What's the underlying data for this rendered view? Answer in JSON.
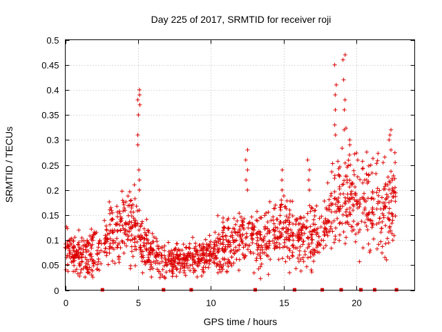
{
  "chart_data": {
    "type": "scatter",
    "title": "Day 225 of 2017, SRMTID for receiver roji",
    "xlabel": "GPS time / hours",
    "ylabel": "SRMTID / TECUs",
    "xlim": [
      0,
      24
    ],
    "ylim": [
      0,
      0.5
    ],
    "xticks": [
      0,
      5,
      10,
      15,
      20
    ],
    "xtick_labels": [
      "0",
      "5",
      "10",
      "15",
      "20"
    ],
    "yticks": [
      0,
      0.05,
      0.1,
      0.15,
      0.2,
      0.25,
      0.3,
      0.35,
      0.4,
      0.45,
      0.5
    ],
    "ytick_labels": [
      "0",
      "0.05",
      "0.1",
      "0.15",
      "0.2",
      "0.25",
      "0.3",
      "0.35",
      "0.4",
      "0.45",
      "0.5"
    ],
    "grid": true,
    "marker": "+",
    "color": "#dd0000",
    "gap_markers_x": [
      2.55,
      6.75,
      8.65,
      13.05,
      15.75,
      17.65,
      18.95,
      20.3,
      21.25,
      22.75
    ],
    "baseline_envelope": [
      [
        0.0,
        0.075
      ],
      [
        1.0,
        0.07
      ],
      [
        2.5,
        0.075
      ],
      [
        3.2,
        0.12
      ],
      [
        4.5,
        0.13
      ],
      [
        5.5,
        0.09
      ],
      [
        6.5,
        0.06
      ],
      [
        8.5,
        0.06
      ],
      [
        9.5,
        0.07
      ],
      [
        11.0,
        0.09
      ],
      [
        12.5,
        0.11
      ],
      [
        13.5,
        0.1
      ],
      [
        15.0,
        0.12
      ],
      [
        16.5,
        0.1
      ],
      [
        17.5,
        0.11
      ],
      [
        18.5,
        0.17
      ],
      [
        19.5,
        0.2
      ],
      [
        20.5,
        0.17
      ],
      [
        22.0,
        0.17
      ],
      [
        22.8,
        0.18
      ]
    ],
    "segments": [
      [
        0.0,
        2.5
      ],
      [
        2.65,
        6.7
      ],
      [
        6.8,
        8.6
      ],
      [
        8.7,
        13.0
      ],
      [
        13.1,
        15.7
      ],
      [
        15.8,
        17.6
      ],
      [
        17.7,
        18.9
      ],
      [
        19.0,
        20.25
      ],
      [
        20.35,
        21.2
      ],
      [
        21.3,
        22.7
      ]
    ],
    "peaks": [
      {
        "x": 5.05,
        "values": [
          0.29,
          0.31,
          0.35,
          0.37,
          0.38,
          0.39,
          0.4,
          0.24,
          0.22,
          0.2
        ]
      },
      {
        "x": 12.45,
        "values": [
          0.2,
          0.22,
          0.24,
          0.26,
          0.28
        ]
      },
      {
        "x": 18.55,
        "values": [
          0.36,
          0.39,
          0.41,
          0.45,
          0.33,
          0.31
        ]
      },
      {
        "x": 19.15,
        "values": [
          0.32,
          0.36,
          0.38,
          0.42,
          0.47,
          0.46
        ]
      },
      {
        "x": 19.5,
        "values": [
          0.25,
          0.27,
          0.29,
          0.3
        ]
      },
      {
        "x": 22.3,
        "values": [
          0.28,
          0.3,
          0.31,
          0.32
        ]
      },
      {
        "x": 14.85,
        "values": [
          0.2,
          0.22,
          0.24
        ]
      },
      {
        "x": 16.7,
        "values": [
          0.2,
          0.22,
          0.24,
          0.26
        ]
      }
    ]
  }
}
